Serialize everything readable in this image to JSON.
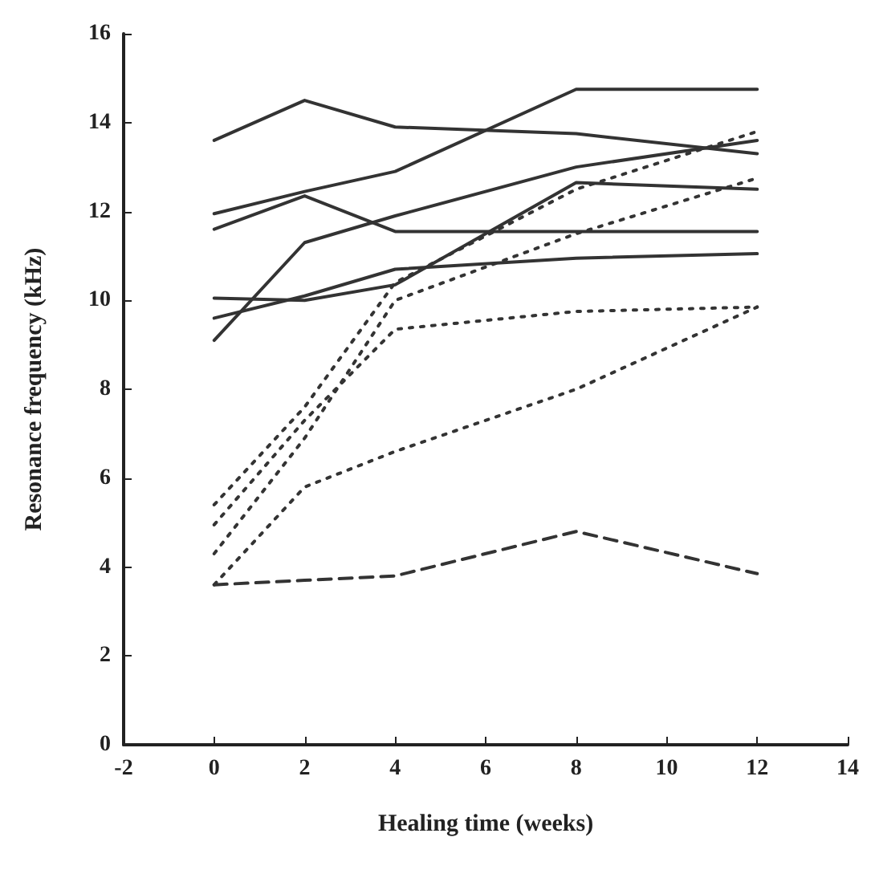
{
  "chart_data": {
    "type": "line",
    "xlabel": "Healing time (weeks)",
    "ylabel": "Resonance frequency (kHz)",
    "x": [
      0,
      2,
      4,
      8,
      12
    ],
    "xlim": [
      -2,
      14
    ],
    "xticks": [
      -2,
      0,
      2,
      4,
      6,
      8,
      10,
      12,
      14
    ],
    "ylim": [
      0,
      16
    ],
    "yticks": [
      0,
      2,
      4,
      6,
      8,
      10,
      12,
      14,
      16
    ],
    "grid": false,
    "marker": "none",
    "series": [
      {
        "color": "#333333",
        "line_style": "solid",
        "values": [
          13.6,
          14.5,
          13.9,
          13.75,
          13.3
        ]
      },
      {
        "color": "#333333",
        "line_style": "solid",
        "values": [
          11.95,
          12.45,
          12.9,
          14.75,
          14.75
        ]
      },
      {
        "color": "#333333",
        "line_style": "solid",
        "values": [
          11.6,
          12.35,
          11.55,
          11.55,
          11.55
        ]
      },
      {
        "color": "#333333",
        "line_style": "solid",
        "values": [
          9.1,
          11.3,
          11.9,
          13.0,
          13.6
        ]
      },
      {
        "color": "#333333",
        "line_style": "solid",
        "values": [
          10.05,
          10.0,
          10.35,
          12.65,
          12.5
        ]
      },
      {
        "color": "#333333",
        "line_style": "solid",
        "values": [
          9.6,
          10.1,
          10.7,
          10.95,
          11.05
        ]
      },
      {
        "color": "#333333",
        "line_style": "dotted",
        "values": [
          5.4,
          7.6,
          10.4,
          12.5,
          13.8
        ]
      },
      {
        "color": "#333333",
        "line_style": "dotted",
        "values": [
          4.95,
          7.3,
          9.35,
          9.75,
          9.85
        ]
      },
      {
        "color": "#333333",
        "line_style": "dotted",
        "values": [
          4.3,
          6.9,
          10.0,
          11.5,
          12.75
        ]
      },
      {
        "color": "#333333",
        "line_style": "dotted",
        "values": [
          3.6,
          5.8,
          6.6,
          8.0,
          9.85
        ]
      },
      {
        "color": "#333333",
        "line_style": "dashed",
        "values": [
          3.6,
          3.7,
          3.8,
          4.8,
          3.85
        ]
      }
    ]
  }
}
